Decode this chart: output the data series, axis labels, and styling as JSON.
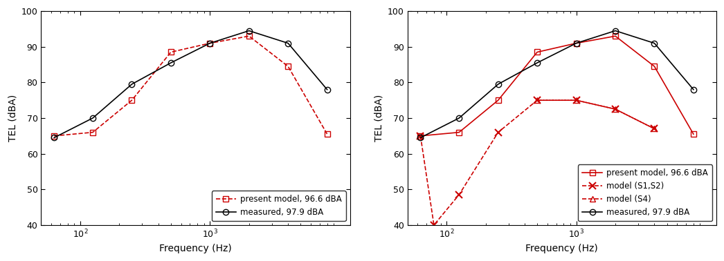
{
  "freqs": [
    63,
    125,
    250,
    500,
    1000,
    2000,
    4000,
    8000
  ],
  "left": {
    "present_model": [
      65,
      66,
      75,
      88.5,
      91,
      93,
      84.5,
      65.5
    ],
    "measured": [
      64.5,
      70,
      79.5,
      85.5,
      91,
      94.5,
      91,
      78
    ]
  },
  "right": {
    "present_model": [
      65,
      66,
      75,
      88.5,
      91,
      93,
      84.5,
      65.5
    ],
    "model_s1s2_freqs": [
      63,
      80,
      125,
      250,
      500,
      1000,
      2000,
      4000
    ],
    "model_s1s2_vals": [
      65,
      40,
      48.5,
      66,
      75,
      75,
      72.5,
      67
    ],
    "model_s4_freqs": [
      500,
      1000,
      2000,
      4000
    ],
    "model_s4_vals": [
      75,
      75,
      72.5,
      67
    ],
    "measured": [
      64.5,
      70,
      79.5,
      85.5,
      91,
      94.5,
      91,
      78
    ]
  },
  "ylim": [
    40,
    100
  ],
  "xlim": [
    50,
    12000
  ],
  "ylabel": "TEL (dBA)",
  "xlabel": "Frequency (Hz)",
  "legend_left": [
    "present model, 96.6 dBA",
    "measured, 97.9 dBA"
  ],
  "legend_right": [
    "present model, 96.6 dBA",
    "model (S1,S2)",
    "model (S4)",
    "measured, 97.9 dBA"
  ],
  "red_color": "#cc0000",
  "black_color": "#000000",
  "yticks": [
    40,
    50,
    60,
    70,
    80,
    90,
    100
  ],
  "xtick_locs": [
    100,
    1000
  ],
  "xtick_labels": [
    "10^2",
    "10^3"
  ]
}
